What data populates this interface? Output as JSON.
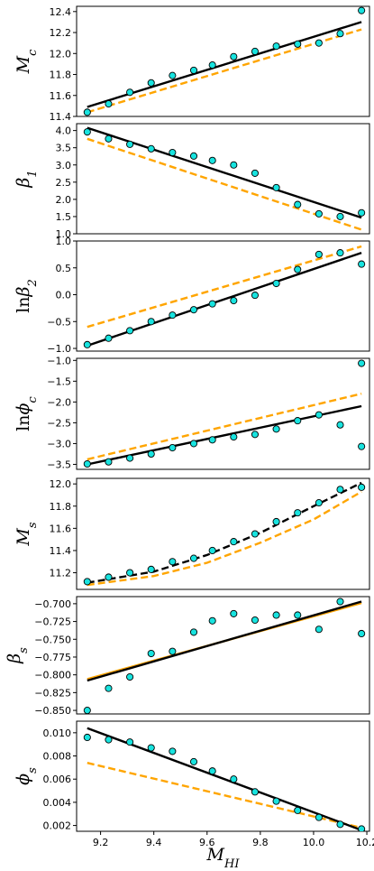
{
  "chart_data": [
    {
      "type": "scatter",
      "ylabel": "M_c",
      "ylim": [
        11.4,
        12.45
      ],
      "yticks": [
        11.4,
        11.6,
        11.8,
        12.0,
        12.2,
        12.4
      ],
      "ytick_labels": [
        "11.4",
        "11.6",
        "11.8",
        "12.0",
        "12.2",
        "12.4"
      ],
      "points": {
        "x": [
          9.15,
          9.23,
          9.31,
          9.39,
          9.47,
          9.55,
          9.62,
          9.7,
          9.78,
          9.86,
          9.94,
          10.02,
          10.1,
          10.18
        ],
        "y": [
          11.44,
          11.52,
          11.63,
          11.72,
          11.79,
          11.84,
          11.89,
          11.97,
          12.02,
          12.07,
          12.09,
          12.1,
          12.19,
          12.41
        ]
      },
      "fit_black": {
        "style": "solid",
        "x": [
          9.15,
          10.18
        ],
        "y": [
          11.49,
          12.3
        ]
      },
      "fit_orange": {
        "style": "dashed",
        "x": [
          9.15,
          10.18
        ],
        "y": [
          11.44,
          12.23
        ]
      }
    },
    {
      "type": "scatter",
      "ylabel": "β_1",
      "ylim": [
        1.0,
        4.2
      ],
      "yticks": [
        1.0,
        1.5,
        2.0,
        2.5,
        3.0,
        3.5,
        4.0
      ],
      "ytick_labels": [
        "1.0",
        "1.5",
        "2.0",
        "2.5",
        "3.0",
        "3.5",
        "4.0"
      ],
      "points": {
        "x": [
          9.15,
          9.23,
          9.31,
          9.39,
          9.47,
          9.55,
          9.62,
          9.7,
          9.78,
          9.86,
          9.94,
          10.02,
          10.1,
          10.18
        ],
        "y": [
          3.96,
          3.76,
          3.6,
          3.47,
          3.36,
          3.26,
          3.13,
          3.0,
          2.76,
          2.34,
          1.85,
          1.58,
          1.5,
          1.61
        ]
      },
      "fit_black": {
        "style": "solid",
        "x": [
          9.15,
          10.18
        ],
        "y": [
          4.08,
          1.47
        ]
      },
      "fit_orange": {
        "style": "dashed",
        "x": [
          9.15,
          10.18
        ],
        "y": [
          3.76,
          1.12
        ]
      }
    },
    {
      "type": "scatter",
      "ylabel": "lnβ_2",
      "ylim": [
        -1.05,
        1.0
      ],
      "yticks": [
        -1.0,
        -0.5,
        0.0,
        0.5,
        1.0
      ],
      "ytick_labels": [
        "−1.0",
        "−0.5",
        "0.0",
        "0.5",
        "1.0"
      ],
      "points": {
        "x": [
          9.15,
          9.23,
          9.31,
          9.39,
          9.47,
          9.55,
          9.62,
          9.7,
          9.78,
          9.86,
          9.94,
          10.02,
          10.1,
          10.18
        ],
        "y": [
          -0.93,
          -0.81,
          -0.67,
          -0.5,
          -0.38,
          -0.28,
          -0.17,
          -0.11,
          -0.01,
          0.21,
          0.47,
          0.75,
          0.78,
          0.57
        ]
      },
      "fit_black": {
        "style": "solid",
        "x": [
          9.15,
          10.18
        ],
        "y": [
          -0.95,
          0.78
        ]
      },
      "fit_orange": {
        "style": "dashed",
        "x": [
          9.15,
          10.18
        ],
        "y": [
          -0.6,
          0.9
        ]
      }
    },
    {
      "type": "scatter",
      "ylabel": "lnϕ_c",
      "ylim": [
        -3.62,
        -0.95
      ],
      "yticks": [
        -3.5,
        -3.0,
        -2.5,
        -2.0,
        -1.5,
        -1.0
      ],
      "ytick_labels": [
        "−3.5",
        "−3.0",
        "−2.5",
        "−2.0",
        "−1.5",
        "−1.0"
      ],
      "points": {
        "x": [
          9.15,
          9.23,
          9.31,
          9.39,
          9.47,
          9.55,
          9.62,
          9.7,
          9.78,
          9.86,
          9.94,
          10.02,
          10.1,
          10.18
        ],
        "y": [
          -3.49,
          -3.44,
          -3.35,
          -3.25,
          -3.1,
          -3.0,
          -2.91,
          -2.84,
          -2.78,
          -2.65,
          -2.45,
          -2.31,
          -2.55,
          -3.07
        ]
      },
      "extra_point": {
        "x": 10.18,
        "y": -1.07
      },
      "fit_black": {
        "style": "solid",
        "x": [
          9.15,
          10.18
        ],
        "y": [
          -3.5,
          -2.1
        ]
      },
      "fit_orange": {
        "style": "dashed",
        "x": [
          9.15,
          10.18
        ],
        "y": [
          -3.38,
          -1.8
        ]
      }
    },
    {
      "type": "scatter",
      "ylabel": "M_s",
      "ylim": [
        11.05,
        12.05
      ],
      "yticks": [
        11.2,
        11.4,
        11.6,
        11.8,
        12.0
      ],
      "ytick_labels": [
        "11.2",
        "11.4",
        "11.6",
        "11.8",
        "12.0"
      ],
      "points": {
        "x": [
          9.15,
          9.23,
          9.31,
          9.39,
          9.47,
          9.55,
          9.62,
          9.7,
          9.78,
          9.86,
          9.94,
          10.02,
          10.1,
          10.18
        ],
        "y": [
          11.12,
          11.16,
          11.2,
          11.23,
          11.3,
          11.33,
          11.4,
          11.48,
          11.55,
          11.66,
          11.74,
          11.83,
          11.95,
          11.97
        ]
      },
      "fit_black": {
        "style": "dashed",
        "x": [
          9.15,
          9.4,
          9.6,
          9.8,
          10.0,
          10.18
        ],
        "y": [
          11.11,
          11.21,
          11.36,
          11.56,
          11.8,
          12.01
        ]
      },
      "fit_orange": {
        "style": "dashed",
        "x": [
          9.15,
          9.4,
          9.6,
          9.8,
          10.0,
          10.18
        ],
        "y": [
          11.09,
          11.17,
          11.29,
          11.47,
          11.68,
          11.93
        ]
      }
    },
    {
      "type": "scatter",
      "ylabel": "β_s",
      "ylim": [
        -0.855,
        -0.69
      ],
      "yticks": [
        -0.85,
        -0.825,
        -0.8,
        -0.775,
        -0.75,
        -0.725,
        -0.7
      ],
      "ytick_labels": [
        "−0.850",
        "−0.825",
        "−0.800",
        "−0.775",
        "−0.750",
        "−0.725",
        "−0.700"
      ],
      "points": {
        "x": [
          9.15,
          9.23,
          9.31,
          9.39,
          9.47,
          9.55,
          9.62,
          9.7,
          9.78,
          9.86,
          9.94,
          10.02,
          10.1,
          10.18
        ],
        "y": [
          -0.85,
          -0.819,
          -0.803,
          -0.77,
          -0.767,
          -0.74,
          -0.724,
          -0.714,
          -0.723,
          -0.716,
          -0.716,
          -0.736,
          -0.697,
          -0.742
        ]
      },
      "fit_black": {
        "style": "solid",
        "x": [
          9.15,
          10.18
        ],
        "y": [
          -0.808,
          -0.697
        ]
      },
      "fit_orange": {
        "style": "solid",
        "x": [
          9.15,
          10.18
        ],
        "y": [
          -0.806,
          -0.699
        ]
      }
    },
    {
      "type": "scatter",
      "ylabel": "ϕ_s",
      "ylim": [
        0.0015,
        0.011
      ],
      "yticks": [
        0.002,
        0.004,
        0.006,
        0.008,
        0.01
      ],
      "ytick_labels": [
        "0.002",
        "0.004",
        "0.006",
        "0.008",
        "0.010"
      ],
      "xlabel": "M_HI",
      "xticks": [
        9.2,
        9.4,
        9.6,
        9.8,
        10.0,
        10.2
      ],
      "xtick_labels": [
        "9.2",
        "9.4",
        "9.6",
        "9.8",
        "10.0",
        "10.2"
      ],
      "points": {
        "x": [
          9.15,
          9.23,
          9.31,
          9.39,
          9.47,
          9.55,
          9.62,
          9.7,
          9.78,
          9.86,
          9.94,
          10.02,
          10.1,
          10.18
        ],
        "y": [
          0.0096,
          0.0094,
          0.0092,
          0.0087,
          0.0084,
          0.0075,
          0.0067,
          0.006,
          0.0049,
          0.0041,
          0.0033,
          0.0027,
          0.0021,
          0.0017
        ]
      },
      "fit_black": {
        "style": "solid",
        "x": [
          9.15,
          10.18
        ],
        "y": [
          0.0104,
          0.0016
        ]
      },
      "fit_orange": {
        "style": "dashed",
        "x": [
          9.15,
          10.18
        ],
        "y": [
          0.0074,
          0.0018
        ]
      }
    }
  ],
  "xlim": [
    9.11,
    10.21
  ],
  "colors": {
    "point_fill": "#18e3df",
    "point_edge": "#000000",
    "black_line": "#000000",
    "orange_line": "#ffa500",
    "frame": "#000000"
  }
}
